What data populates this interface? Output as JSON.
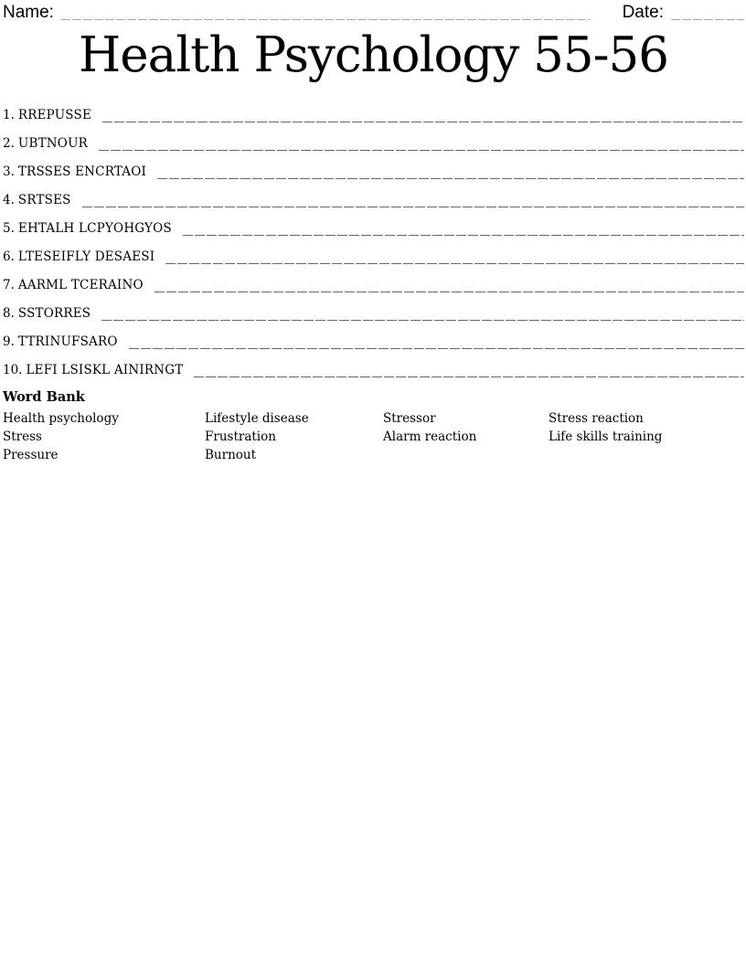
{
  "header": {
    "name_label": "Name:",
    "date_label": "Date:",
    "name_value": "",
    "date_value": ""
  },
  "title": "Health Psychology 55-56",
  "items": [
    {
      "num": "1.",
      "word": "RREPUSSE"
    },
    {
      "num": "2.",
      "word": "UBTNOUR"
    },
    {
      "num": "3.",
      "word": "TRSSES ENCRTAOI"
    },
    {
      "num": "4.",
      "word": "SRTSES"
    },
    {
      "num": "5.",
      "word": "EHTALH LCPYOHGYOS"
    },
    {
      "num": "6.",
      "word": "LTESEIFLY DESAESI"
    },
    {
      "num": "7.",
      "word": "AARML TCERAINO"
    },
    {
      "num": "8.",
      "word": "SSTORRES"
    },
    {
      "num": "9.",
      "word": "TTRINUFSARO"
    },
    {
      "num": "10.",
      "word": "LEFI LSISKL AINIRNGT"
    }
  ],
  "word_bank": {
    "title": "Word Bank",
    "columns": [
      [
        "Health psychology",
        "Stress",
        "Pressure"
      ],
      [
        "Lifestyle disease",
        "Frustration",
        "Burnout"
      ],
      [
        "Stressor",
        "Alarm reaction"
      ],
      [
        "Stress reaction",
        "Life skills training"
      ]
    ]
  },
  "colors": {
    "text": "#000000",
    "answer_line": "#676767",
    "header_line": "#a6a6a6",
    "background": "#ffffff"
  }
}
